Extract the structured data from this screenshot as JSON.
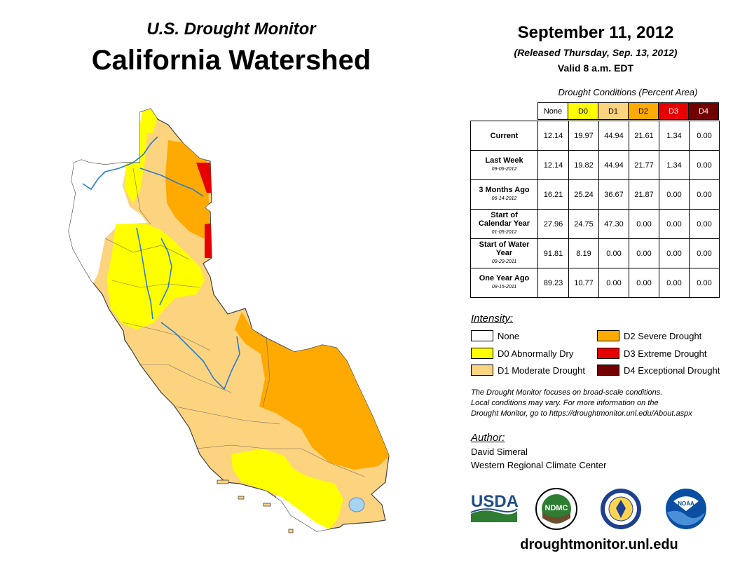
{
  "header": {
    "subtitle": "U.S. Drought Monitor",
    "title": "California Watershed",
    "date": "September 11, 2012",
    "released": "(Released Thursday, Sep. 13, 2012)",
    "valid": "Valid 8 a.m. EDT"
  },
  "table": {
    "caption": "Drought Conditions (Percent Area)",
    "columns": [
      "None",
      "D0",
      "D1",
      "D2",
      "D3",
      "D4"
    ],
    "column_colors": [
      "#ffffff",
      "#ffff00",
      "#fcd37f",
      "#ffaa00",
      "#e60000",
      "#730000"
    ],
    "rows": [
      {
        "label": "Current",
        "date": "",
        "values": [
          "12.14",
          "19.97",
          "44.94",
          "21.61",
          "1.34",
          "0.00"
        ]
      },
      {
        "label": "Last Week",
        "date": "09-06-2012",
        "values": [
          "12.14",
          "19.82",
          "44.94",
          "21.77",
          "1.34",
          "0.00"
        ]
      },
      {
        "label": "3 Months Ago",
        "date": "06-14-2012",
        "values": [
          "16.21",
          "25.24",
          "36.67",
          "21.87",
          "0.00",
          "0.00"
        ]
      },
      {
        "label": "Start of Calendar Year",
        "date": "01-05-2012",
        "values": [
          "27.96",
          "24.75",
          "47.30",
          "0.00",
          "0.00",
          "0.00"
        ]
      },
      {
        "label": "Start of Water Year",
        "date": "09-29-2011",
        "values": [
          "91.81",
          "8.19",
          "0.00",
          "0.00",
          "0.00",
          "0.00"
        ]
      },
      {
        "label": "One Year Ago",
        "date": "09-15-2011",
        "values": [
          "89.23",
          "10.77",
          "0.00",
          "0.00",
          "0.00",
          "0.00"
        ]
      }
    ]
  },
  "legend": {
    "title": "Intensity:",
    "items": [
      {
        "label": "None",
        "color": "#ffffff"
      },
      {
        "label": "D0 Abnormally Dry",
        "color": "#ffff00"
      },
      {
        "label": "D1 Moderate Drought",
        "color": "#fcd37f"
      },
      {
        "label": "D2 Severe Drought",
        "color": "#ffaa00"
      },
      {
        "label": "D3 Extreme Drought",
        "color": "#e60000"
      },
      {
        "label": "D4 Exceptional Drought",
        "color": "#730000"
      }
    ]
  },
  "note": {
    "line1": "The Drought Monitor focuses on broad-scale conditions.",
    "line2": "Local conditions may vary. For more information on the",
    "line3": "Drought Monitor, go to https://droughtmonitor.unl.edu/About.aspx"
  },
  "author": {
    "label": "Author:",
    "name": "David Simeral",
    "org": "Western Regional Climate Center"
  },
  "logos": {
    "usda": "USDA",
    "ndmc": "NDMC",
    "noaa": "NOAA"
  },
  "footer": {
    "website": "droughtmonitor.unl.edu"
  },
  "map": {
    "region": "California Watershed"
  }
}
